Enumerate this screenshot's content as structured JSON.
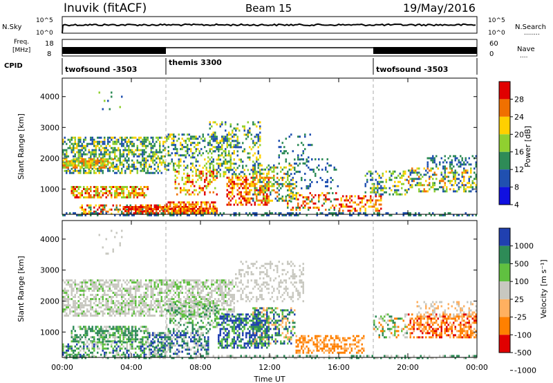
{
  "header": {
    "station": "Inuvik (fitACF)",
    "beam": "Beam 15",
    "date": "19/May/2016"
  },
  "panels": {
    "nsky": {
      "label": "N.Sky",
      "ticks": [
        "10^5",
        "10^0"
      ],
      "right_ticks": [
        "10^5",
        "10^0"
      ],
      "right_label": "N.Search",
      "right_label_dots": "........"
    },
    "freq": {
      "label_line1": "Freq.",
      "label_line2": "[MHz]",
      "ticks": [
        "18",
        "8"
      ],
      "right_ticks": [
        "60",
        "0"
      ],
      "right_label": "Nave",
      "right_label_dots": "...."
    },
    "cpid": {
      "label": "CPID",
      "modes": [
        {
          "name": "twofsound -3503",
          "start_h": 0,
          "end_h": 6
        },
        {
          "name": "themis 3300",
          "start_h": 6,
          "end_h": 18
        },
        {
          "name": "twofsound -3503",
          "start_h": 18,
          "end_h": 24
        }
      ]
    }
  },
  "chart_data": [
    {
      "type": "heatmap",
      "name": "power",
      "xlabel": "Time UT",
      "ylabel": "Slant Range [km]",
      "xlim": [
        0,
        24
      ],
      "ylim": [
        180,
        4600
      ],
      "yticks": [
        "1000",
        "2000",
        "3000",
        "4000"
      ],
      "xticks": [
        "00:00",
        "04:00",
        "08:00",
        "12:00",
        "16:00",
        "20:00",
        "00:00"
      ],
      "colorbar": {
        "label": "Power [dB]",
        "ticks": [
          "28",
          "24",
          "20",
          "16",
          "12",
          "8",
          "4"
        ],
        "colors": [
          "#e00000",
          "#f07000",
          "#ffd000",
          "#90d030",
          "#2e8b57",
          "#2050b0",
          "#1010e0"
        ]
      }
    },
    {
      "type": "heatmap",
      "name": "velocity",
      "xlabel": "Time UT",
      "ylabel": "Slant Range [km]",
      "xlim": [
        0,
        24
      ],
      "ylim": [
        180,
        4600
      ],
      "yticks": [
        "1000",
        "2000",
        "3000",
        "4000"
      ],
      "xticks": [
        "00:00",
        "04:00",
        "08:00",
        "12:00",
        "16:00",
        "20:00",
        "00:00"
      ],
      "colorbar": {
        "label": "Velocity [m s⁻¹]",
        "ticks": [
          "1000",
          "500",
          "100",
          "25",
          "-25",
          "-100",
          "-500",
          "-1000"
        ],
        "colors": [
          "#2040b0",
          "#2e8b57",
          "#60c040",
          "#c8c8c0",
          "#ffb060",
          "#ff8000",
          "#e00000"
        ]
      }
    }
  ],
  "xaxis": {
    "label": "Time UT",
    "ticks": [
      "00:00",
      "04:00",
      "08:00",
      "12:00",
      "16:00",
      "20:00",
      "00:00"
    ]
  },
  "colors": {
    "groundscatter": "#c0c0b8",
    "divider": "#aaaaaa"
  }
}
